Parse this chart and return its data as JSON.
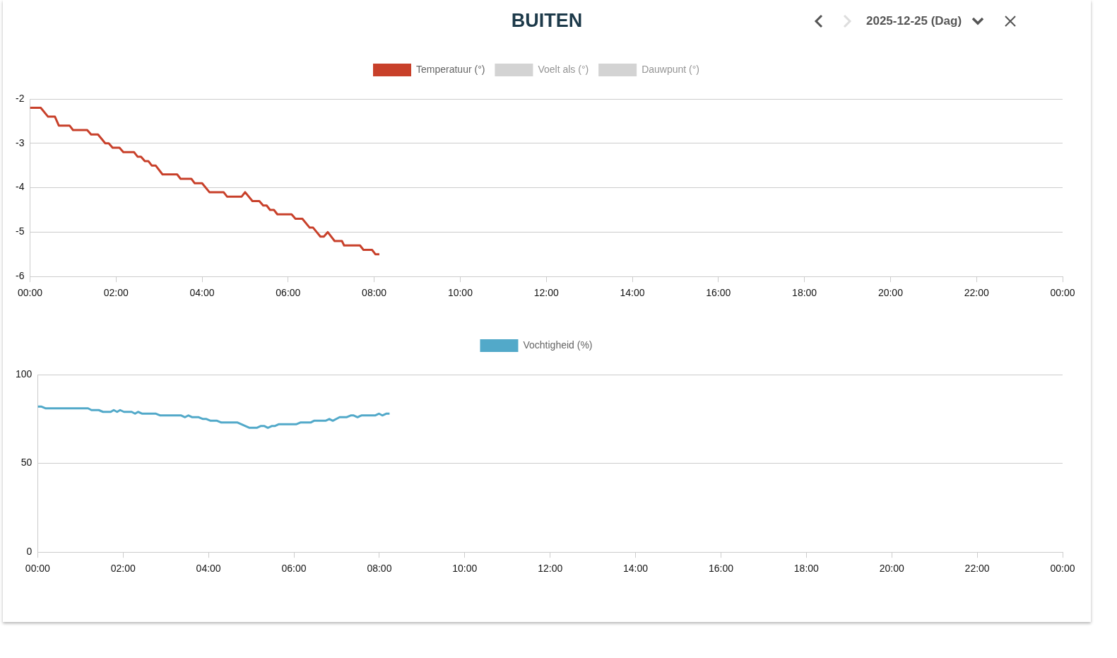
{
  "chart_data": [
    {
      "type": "line",
      "title": "BUITEN",
      "subtitle": "2025-12-25 (Dag)",
      "legend": "top",
      "grid": "y",
      "marker": "none",
      "xlim": [
        0,
        24
      ],
      "xticks": [
        {
          "value": 0,
          "label": "00:00"
        },
        {
          "value": 2,
          "label": "02:00"
        },
        {
          "value": 4,
          "label": "04:00"
        },
        {
          "value": 6,
          "label": "06:00"
        },
        {
          "value": 8,
          "label": "08:00"
        },
        {
          "value": 10,
          "label": "10:00"
        },
        {
          "value": 12,
          "label": "12:00"
        },
        {
          "value": 14,
          "label": "14:00"
        },
        {
          "value": 16,
          "label": "16:00"
        },
        {
          "value": 18,
          "label": "18:00"
        },
        {
          "value": 20,
          "label": "20:00"
        },
        {
          "value": 22,
          "label": "22:00"
        },
        {
          "value": 24,
          "label": "00:00"
        }
      ],
      "ylim": [
        -6,
        -2
      ],
      "yticks": [
        -6,
        -5,
        -4,
        -3,
        -2
      ],
      "series": [
        {
          "name": "Temperatuur (°)",
          "color": "#c8402a",
          "x": [
            0,
            0.25,
            0.42,
            0.58,
            0.67,
            0.92,
            1.0,
            1.33,
            1.42,
            1.58,
            1.75,
            1.83,
            1.92,
            2.08,
            2.17,
            2.42,
            2.5,
            2.58,
            2.67,
            2.75,
            2.83,
            2.92,
            3.08,
            3.42,
            3.5,
            3.75,
            3.83,
            4.0,
            4.17,
            4.5,
            4.58,
            4.92,
            5.0,
            5.17,
            5.33,
            5.42,
            5.5,
            5.58,
            5.67,
            5.75,
            6.08,
            6.17,
            6.33,
            6.5,
            6.58,
            6.75,
            6.83,
            6.92,
            7.08,
            7.25,
            7.3,
            7.67,
            7.75,
            7.95,
            8.03,
            8.12
          ],
          "values": [
            -2.2,
            -2.2,
            -2.4,
            -2.4,
            -2.6,
            -2.6,
            -2.7,
            -2.7,
            -2.8,
            -2.8,
            -3.0,
            -3.0,
            -3.1,
            -3.1,
            -3.2,
            -3.2,
            -3.3,
            -3.3,
            -3.4,
            -3.4,
            -3.5,
            -3.5,
            -3.7,
            -3.7,
            -3.8,
            -3.8,
            -3.9,
            -3.9,
            -4.1,
            -4.1,
            -4.2,
            -4.2,
            -4.1,
            -4.3,
            -4.3,
            -4.4,
            -4.4,
            -4.5,
            -4.5,
            -4.6,
            -4.6,
            -4.7,
            -4.7,
            -4.9,
            -4.9,
            -5.1,
            -5.1,
            -5.0,
            -5.2,
            -5.2,
            -5.3,
            -5.3,
            -5.4,
            -5.4,
            -5.5,
            -5.5
          ]
        },
        {
          "name": "Voelt als (°)",
          "color": "#d3d3d3"
        },
        {
          "name": "Dauwpunt (°)",
          "color": "#d3d3d3"
        }
      ]
    },
    {
      "type": "line",
      "legend": "top",
      "grid": "y",
      "marker": "none",
      "xlim": [
        0,
        24
      ],
      "xticks": [
        {
          "value": 0,
          "label": "00:00"
        },
        {
          "value": 2,
          "label": "02:00"
        },
        {
          "value": 4,
          "label": "04:00"
        },
        {
          "value": 6,
          "label": "06:00"
        },
        {
          "value": 8,
          "label": "08:00"
        },
        {
          "value": 10,
          "label": "10:00"
        },
        {
          "value": 12,
          "label": "12:00"
        },
        {
          "value": 14,
          "label": "14:00"
        },
        {
          "value": 16,
          "label": "16:00"
        },
        {
          "value": 18,
          "label": "18:00"
        },
        {
          "value": 20,
          "label": "20:00"
        },
        {
          "value": 22,
          "label": "22:00"
        },
        {
          "value": 24,
          "label": "00:00"
        }
      ],
      "ylim": [
        0,
        100
      ],
      "yticks": [
        0,
        50,
        100
      ],
      "series": [
        {
          "name": "Vochtigheid (%)",
          "color": "#52a9c9",
          "x": [
            0,
            0.08,
            0.18,
            1.18,
            1.26,
            1.43,
            1.53,
            1.71,
            1.78,
            1.86,
            1.93,
            2.02,
            2.2,
            2.28,
            2.35,
            2.45,
            2.77,
            2.87,
            3.36,
            3.45,
            3.53,
            3.62,
            3.77,
            3.87,
            3.95,
            4.05,
            4.2,
            4.3,
            4.68,
            4.96,
            5.13,
            5.22,
            5.31,
            5.39,
            5.48,
            5.55,
            5.64,
            6.05,
            6.15,
            6.39,
            6.47,
            6.74,
            6.83,
            6.91,
            7.07,
            7.23,
            7.33,
            7.4,
            7.49,
            7.58,
            7.9,
            7.99,
            8.07,
            8.16,
            8.24
          ],
          "values": [
            82,
            82,
            81,
            81,
            80,
            80,
            79,
            79,
            80,
            79,
            80,
            79,
            79,
            78,
            79,
            78,
            78,
            77,
            77,
            76,
            77,
            76,
            76,
            75,
            75,
            74,
            74,
            73,
            73,
            70,
            70,
            71,
            71,
            70,
            71,
            71,
            72,
            72,
            73,
            73,
            74,
            74,
            75,
            74,
            76,
            76,
            77,
            77,
            76,
            77,
            77,
            78,
            77,
            78,
            78
          ]
        }
      ]
    }
  ]
}
